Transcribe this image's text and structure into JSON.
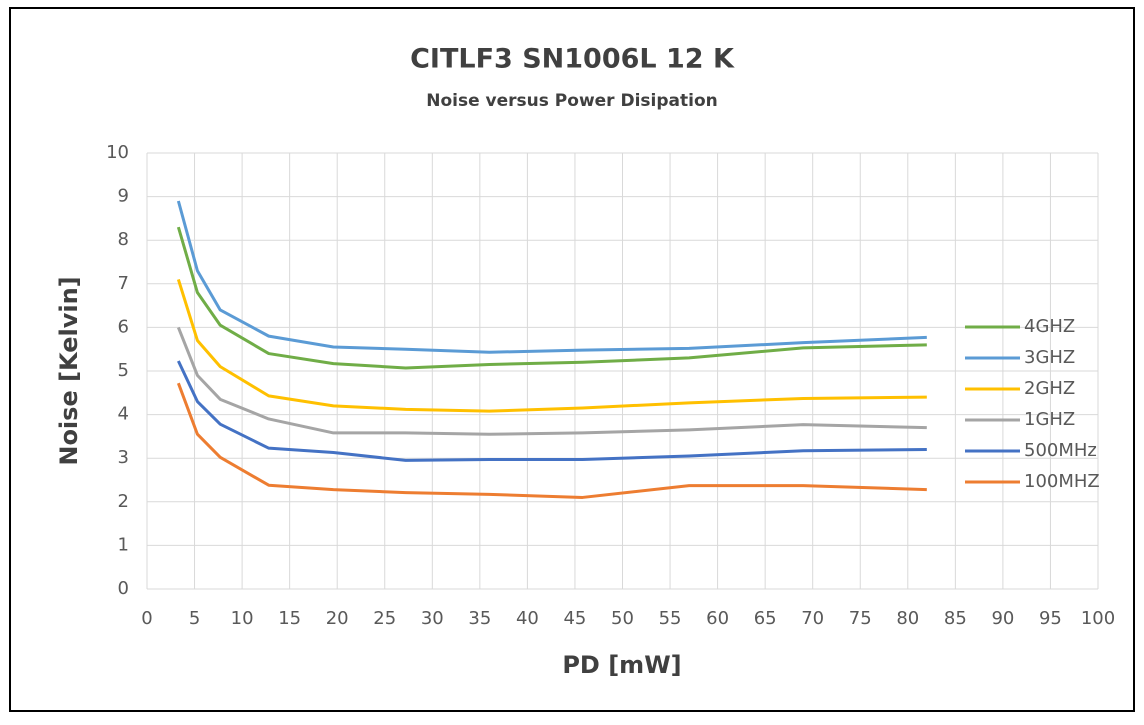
{
  "chart_data": {
    "type": "line",
    "title": "CITLF3 SN1006L 12 K",
    "subtitle": "Noise versus Power Disipation",
    "xlabel": "PD [mW]",
    "ylabel": "Noise [Kelvin]",
    "x": [
      3.3,
      5.3,
      7.7,
      12.8,
      19.6,
      27.2,
      36,
      45.8,
      57,
      69,
      82
    ],
    "series": [
      {
        "name": "4GHZ",
        "color": "#70ad47",
        "values": [
          8.3,
          6.8,
          6.05,
          5.4,
          5.17,
          5.07,
          5.15,
          5.2,
          5.3,
          5.53,
          5.6
        ]
      },
      {
        "name": "3GHZ",
        "color": "#5b9bd5",
        "values": [
          8.9,
          7.3,
          6.4,
          5.8,
          5.55,
          5.5,
          5.43,
          5.48,
          5.52,
          5.65,
          5.77
        ]
      },
      {
        "name": "2GHZ",
        "color": "#ffc000",
        "values": [
          7.1,
          5.7,
          5.1,
          4.43,
          4.2,
          4.12,
          4.08,
          4.15,
          4.27,
          4.37,
          4.4
        ]
      },
      {
        "name": "1GHZ",
        "color": "#a5a5a5",
        "values": [
          6.0,
          4.9,
          4.35,
          3.9,
          3.58,
          3.58,
          3.55,
          3.58,
          3.65,
          3.77,
          3.7
        ]
      },
      {
        "name": "500MHz",
        "color": "#4472c4",
        "values": [
          5.23,
          4.3,
          3.78,
          3.23,
          3.13,
          2.95,
          2.97,
          2.97,
          3.05,
          3.17,
          3.2
        ]
      },
      {
        "name": "100MHZ",
        "color": "#ed7d31",
        "values": [
          4.72,
          3.55,
          3.02,
          2.38,
          2.28,
          2.21,
          2.17,
          2.1,
          2.37,
          2.37,
          2.28
        ]
      }
    ],
    "xlim": [
      0,
      100
    ],
    "xticks": [
      0,
      5,
      10,
      15,
      20,
      25,
      30,
      35,
      40,
      45,
      50,
      55,
      60,
      65,
      70,
      75,
      80,
      85,
      90,
      95,
      100
    ],
    "ylim": [
      0,
      10
    ],
    "yticks": [
      0,
      1,
      2,
      3,
      4,
      5,
      6,
      7,
      8,
      9,
      10
    ],
    "grid": true,
    "legend": "right"
  }
}
